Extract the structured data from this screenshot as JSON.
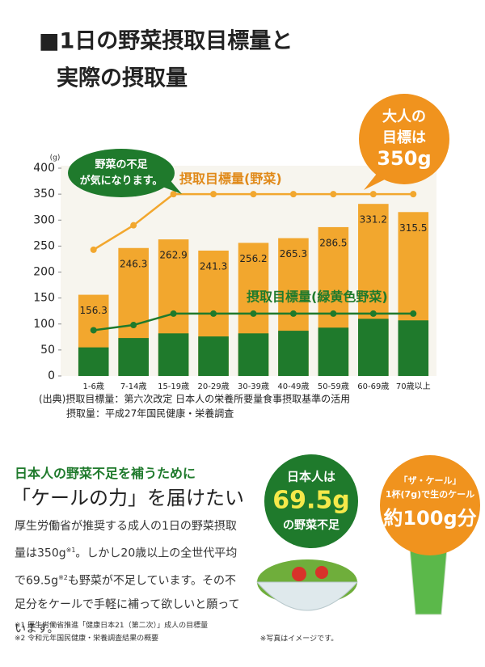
{
  "header": {
    "title_line1": "■1日の野菜摂取目標量と",
    "title_line2": "実際の摂取量"
  },
  "chart_data": {
    "type": "bar",
    "y_unit": "(g)",
    "categories": [
      "1-6歳",
      "7-14歳",
      "15-19歳",
      "20-29歳",
      "30-39歳",
      "40-49歳",
      "50-59歳",
      "60-69歳",
      "70歳以上"
    ],
    "series": [
      {
        "color": "#f2a72e",
        "values": [
          156.3,
          246.3,
          262.9,
          241.3,
          256.2,
          265.3,
          286.5,
          331.2,
          315.5
        ]
      },
      {
        "color": "#1f7a2c",
        "values": [
          55,
          73,
          82,
          76,
          82,
          87,
          93,
          110,
          107
        ]
      }
    ],
    "lines": [
      {
        "label": "摂取目標量(野菜)",
        "color": "#f2a72e",
        "values": [
          243,
          290,
          350,
          350,
          350,
          350,
          350,
          350,
          350
        ]
      },
      {
        "label": "摂取目標量(緑黄色野菜)",
        "color": "#1f7a2c",
        "values": [
          88,
          98,
          120,
          120,
          120,
          120,
          120,
          120,
          120
        ]
      }
    ],
    "ylim": [
      0,
      400
    ],
    "yticks": [
      0,
      50,
      100,
      150,
      200,
      250,
      300,
      350,
      400
    ],
    "grid": false,
    "callout": [
      "野菜の不足",
      "が気になります。"
    ],
    "badge": [
      "大人の",
      "目標は",
      "350g"
    ],
    "source": [
      "(出典)摂取目標量：第六次改定 日本人の栄養所要量食事摂取基準の活用",
      "摂取量：平成27年国民健康・栄養調査"
    ]
  },
  "section": {
    "lead": "日本人の野菜不足を補うために",
    "headline": "「ケールの力」を届けたい",
    "body": [
      "厚生労働省が推奨する成人の1日の野菜摂取量は350g",
      "※1",
      "。しかし20歳以上の全世代平均で69.5g",
      "※2",
      "も野菜が不足しています。その不足分をケールで手軽に補って欲しいと願っています。"
    ],
    "notes": [
      "※1 厚生労働省推進「健康日本21（第二次）」成人の目標量",
      "※2 令和元年国民健康・栄養調査結果の概要"
    ],
    "green_circle": [
      "日本人は",
      "69.5g",
      "の野菜不足"
    ],
    "orange_circle": [
      "「ザ・ケール」",
      "1杯(7g)で生のケール",
      "約100g分"
    ],
    "photo_note": "※写真はイメージです。"
  }
}
